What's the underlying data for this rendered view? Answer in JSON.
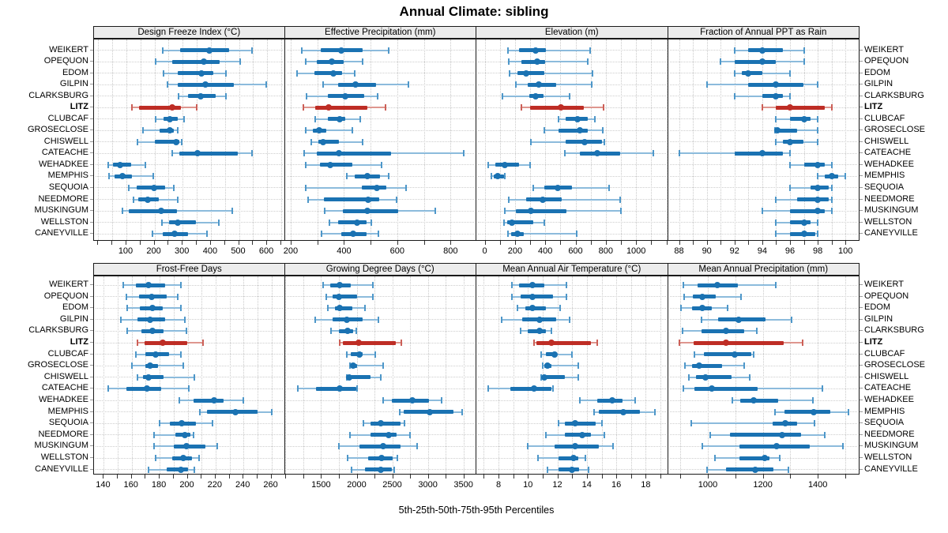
{
  "title": "Annual Climate: sibling",
  "caption": "5th-25th-50th-75th-95th Percentiles",
  "highlight_site": "LITZ",
  "colors": {
    "series": "#1A72B2",
    "series_light": "#8CBBDC",
    "series_cap": "#4E97C9",
    "highlight": "#BE2D25",
    "highlight_light": "#DE968F",
    "highlight_cap": "#CC6058",
    "strip_bg": "#ECECEC",
    "grid": "#C9C9C9"
  },
  "chart_data": {
    "type": "dotplot",
    "subtype": "percentile-interval-plot",
    "percentile_labels": [
      "5th",
      "25th",
      "50th",
      "75th",
      "95th"
    ],
    "legend_position": "none",
    "grid": true,
    "sites": [
      "WEIKERT",
      "OPEQUON",
      "EDOM",
      "GILPIN",
      "CLARKSBURG",
      "LITZ",
      "CLUBCAF",
      "GROSECLOSE",
      "CHISWELL",
      "CATEACHE",
      "WEHADKEE",
      "MEMPHIS",
      "SEQUOIA",
      "NEEDMORE",
      "MUSKINGUM",
      "WELLSTON",
      "CANEYVILLE"
    ],
    "highlight_index": 5,
    "panels": [
      {
        "title": "Design Freeze Index (°C)",
        "row": 0,
        "col": 0,
        "xlim": [
          -15,
          660
        ],
        "label_ticks": [
          100,
          200,
          300,
          400,
          500,
          600
        ],
        "minor_step": 50,
        "values": [
          [
            230,
            290,
            395,
            465,
            545
          ],
          [
            205,
            262,
            375,
            430,
            505
          ],
          [
            232,
            283,
            367,
            408,
            453
          ],
          [
            246,
            283,
            381,
            482,
            598
          ],
          [
            286,
            320,
            364,
            417,
            453
          ],
          [
            120,
            145,
            263,
            295,
            350
          ],
          [
            203,
            232,
            254,
            283,
            305
          ],
          [
            158,
            219,
            254,
            269,
            283
          ],
          [
            140,
            200,
            277,
            288,
            295
          ],
          [
            262,
            288,
            353,
            496,
            545
          ],
          [
            36,
            52,
            78,
            117,
            166
          ],
          [
            38,
            57,
            87,
            121,
            195
          ],
          [
            109,
            137,
            198,
            239,
            267
          ],
          [
            124,
            143,
            177,
            214,
            281
          ],
          [
            87,
            107,
            223,
            279,
            476
          ],
          [
            226,
            251,
            283,
            348,
            427
          ],
          [
            193,
            230,
            272,
            319,
            385
          ]
        ]
      },
      {
        "title": "Effective Precipitation (mm)",
        "row": 0,
        "col": 1,
        "xlim": [
          178,
          891
        ],
        "label_ticks": [
          200,
          400,
          600,
          800
        ],
        "minor_step": 100,
        "values": [
          [
            243,
            314,
            390,
            471,
            569
          ],
          [
            255,
            297,
            355,
            400,
            469
          ],
          [
            224,
            289,
            361,
            392,
            439
          ],
          [
            322,
            377,
            443,
            520,
            642
          ],
          [
            260,
            338,
            404,
            475,
            527
          ],
          [
            248,
            292,
            343,
            488,
            557
          ],
          [
            293,
            338,
            384,
            406,
            460
          ],
          [
            256,
            284,
            308,
            333,
            431
          ],
          [
            276,
            303,
            323,
            382,
            470
          ],
          [
            250,
            298,
            382,
            578,
            850
          ],
          [
            257,
            309,
            348,
            431,
            541
          ],
          [
            410,
            439,
            488,
            534,
            567
          ],
          [
            255,
            466,
            524,
            559,
            632
          ],
          [
            265,
            324,
            490,
            534,
            598
          ],
          [
            328,
            397,
            488,
            603,
            743
          ],
          [
            345,
            377,
            449,
            485,
            502
          ],
          [
            316,
            390,
            433,
            485,
            529
          ]
        ]
      },
      {
        "title": "Elevation (m)",
        "row": 0,
        "col": 2,
        "xlim": [
          -55,
          1200
        ],
        "label_ticks": [
          0,
          200,
          400,
          600,
          800,
          1000
        ],
        "minor_step": 100,
        "values": [
          [
            155,
            225,
            338,
            405,
            695
          ],
          [
            160,
            240,
            344,
            400,
            680
          ],
          [
            163,
            215,
            275,
            395,
            710
          ],
          [
            206,
            284,
            356,
            473,
            705
          ],
          [
            115,
            292,
            338,
            387,
            560
          ],
          [
            244,
            300,
            503,
            653,
            785
          ],
          [
            490,
            535,
            613,
            680,
            730
          ],
          [
            395,
            490,
            627,
            679,
            778
          ],
          [
            304,
            533,
            662,
            773,
            790
          ],
          [
            528,
            627,
            744,
            894,
            1115
          ],
          [
            25,
            70,
            135,
            225,
            300
          ],
          [
            45,
            60,
            85,
            125,
            135
          ],
          [
            318,
            395,
            481,
            575,
            820
          ],
          [
            160,
            275,
            383,
            507,
            895
          ],
          [
            130,
            206,
            304,
            541,
            900
          ],
          [
            125,
            146,
            180,
            318,
            395
          ],
          [
            155,
            172,
            218,
            258,
            605
          ]
        ]
      },
      {
        "title": "Fraction of Annual PPT as Rain",
        "row": 0,
        "col": 3,
        "xlim": [
          87.2,
          100.9
        ],
        "label_ticks": [
          88,
          90,
          92,
          94,
          96,
          98,
          100
        ],
        "minor_step": 1,
        "values": [
          [
            92,
            93,
            94,
            95.5,
            97
          ],
          [
            91,
            92,
            94,
            95,
            97
          ],
          [
            92,
            92.5,
            93,
            94,
            96
          ],
          [
            90,
            93,
            95,
            97,
            98
          ],
          [
            92,
            94,
            95,
            95.5,
            96
          ],
          [
            94,
            95,
            96,
            98.5,
            99
          ],
          [
            95,
            96,
            97,
            97.5,
            98
          ],
          [
            94.9,
            95,
            95.1,
            96.5,
            98
          ],
          [
            95,
            95.5,
            96,
            97,
            98
          ],
          [
            88,
            92,
            94,
            95.5,
            96
          ],
          [
            96,
            97,
            98,
            98.5,
            99
          ],
          [
            98,
            98.5,
            99,
            99.5,
            100
          ],
          [
            96,
            97.5,
            98,
            98.8,
            99
          ],
          [
            95,
            96.5,
            98,
            98.8,
            99
          ],
          [
            94,
            96,
            98,
            98.5,
            99
          ],
          [
            95,
            96,
            97,
            97.5,
            98
          ],
          [
            95,
            96,
            97,
            97.8,
            98
          ]
        ]
      },
      {
        "title": "Frost-Free Days",
        "row": 1,
        "col": 0,
        "xlim": [
          133,
          269
        ],
        "label_ticks": [
          140,
          160,
          180,
          200,
          220,
          240,
          260
        ],
        "minor_step": 10,
        "values": [
          [
            154,
            163,
            172,
            184,
            195
          ],
          [
            156,
            165,
            174,
            185,
            193
          ],
          [
            157,
            166,
            175,
            182,
            195
          ],
          [
            152,
            164,
            173,
            184,
            198
          ],
          [
            157,
            167,
            175,
            183,
            199
          ],
          [
            164,
            169,
            182,
            200,
            211
          ],
          [
            163,
            170,
            177,
            187,
            195
          ],
          [
            160,
            170,
            173,
            179,
            197
          ],
          [
            164,
            168,
            172,
            183,
            205
          ],
          [
            143,
            156,
            171,
            181,
            201
          ],
          [
            194,
            204,
            219,
            226,
            240
          ],
          [
            209,
            214,
            234,
            250,
            260
          ],
          [
            180,
            187,
            196,
            206,
            218
          ],
          [
            176,
            191,
            198,
            202,
            204
          ],
          [
            176,
            190,
            199,
            213,
            221
          ],
          [
            177,
            189,
            197,
            203,
            208
          ],
          [
            172,
            185,
            195,
            200,
            205
          ]
        ]
      },
      {
        "title": "Growing Degree Days (°C)",
        "row": 1,
        "col": 1,
        "xlim": [
          990,
          3660
        ],
        "label_ticks": [
          1500,
          2000,
          2500,
          3000,
          3500
        ],
        "minor_step": 250,
        "values": [
          [
            1530,
            1630,
            1765,
            1920,
            2225
          ],
          [
            1575,
            1665,
            1755,
            2010,
            2230
          ],
          [
            1600,
            1690,
            1765,
            1940,
            2115
          ],
          [
            1420,
            1665,
            1865,
            2085,
            2300
          ],
          [
            1640,
            1755,
            1875,
            1955,
            1995
          ],
          [
            1765,
            1800,
            2025,
            2545,
            2625
          ],
          [
            1860,
            1920,
            2040,
            2085,
            2260
          ],
          [
            1910,
            1930,
            1955,
            2010,
            2370
          ],
          [
            1860,
            1880,
            1895,
            2195,
            2335
          ],
          [
            1170,
            1425,
            1765,
            1995,
            2010
          ],
          [
            2370,
            2495,
            2780,
            3020,
            3190
          ],
          [
            2605,
            2665,
            3030,
            3365,
            3485
          ],
          [
            2095,
            2190,
            2335,
            2615,
            2670
          ],
          [
            1910,
            2190,
            2445,
            2560,
            2750
          ],
          [
            1750,
            2040,
            2370,
            2615,
            2845
          ],
          [
            1875,
            2165,
            2350,
            2505,
            2570
          ],
          [
            1930,
            2120,
            2335,
            2495,
            2530
          ]
        ]
      },
      {
        "title": "Mean Annual Air Temperature (°C)",
        "row": 1,
        "col": 2,
        "xlim": [
          6.5,
          19.4
        ],
        "label_ticks": [
          8,
          10,
          12,
          14,
          16,
          18
        ],
        "minor_step": 1,
        "values": [
          [
            8.9,
            9.4,
            10.3,
            11.1,
            12.6
          ],
          [
            8.9,
            9.5,
            10.3,
            11.7,
            12.6
          ],
          [
            9.3,
            9.8,
            10.3,
            11.2,
            12.2
          ],
          [
            8.2,
            9.6,
            10.8,
            11.9,
            12.8
          ],
          [
            9.5,
            10,
            10.8,
            11.2,
            11.6
          ],
          [
            10.4,
            10.6,
            11.6,
            14.3,
            14.7
          ],
          [
            10.9,
            11.2,
            11.8,
            12,
            13
          ],
          [
            11,
            11.1,
            11.3,
            11.6,
            13.4
          ],
          [
            10.9,
            11,
            11.1,
            12.5,
            13.4
          ],
          [
            7.3,
            8.8,
            10.4,
            11.6,
            11.7
          ],
          [
            13.5,
            14.7,
            15.7,
            16.4,
            17.3
          ],
          [
            14.5,
            14.8,
            16.5,
            17.6,
            18.6
          ],
          [
            12.1,
            12.5,
            13.2,
            14.6,
            15
          ],
          [
            11.2,
            12.5,
            13.7,
            14.3,
            15.2
          ],
          [
            10,
            11.8,
            13.2,
            14.8,
            15.8
          ],
          [
            10.7,
            12.1,
            13.1,
            13.4,
            13.9
          ],
          [
            11.3,
            12.1,
            13,
            13.5,
            14.1
          ]
        ]
      },
      {
        "title": "Mean Annual Precipitation (mm)",
        "row": 1,
        "col": 3,
        "xlim": [
          855,
          1546
        ],
        "label_ticks": [
          1000,
          1200,
          1400
        ],
        "minor_step": 100,
        "values": [
          [
            910,
            962,
            1033,
            1110,
            1248
          ],
          [
            914,
            945,
            981,
            1029,
            1122
          ],
          [
            903,
            943,
            981,
            1014,
            1071
          ],
          [
            976,
            1038,
            1112,
            1210,
            1305
          ],
          [
            907,
            976,
            1065,
            1133,
            1179
          ],
          [
            897,
            948,
            1067,
            1276,
            1345
          ],
          [
            950,
            986,
            1097,
            1157,
            1167
          ],
          [
            916,
            943,
            967,
            1052,
            1133
          ],
          [
            931,
            957,
            992,
            1086,
            1152
          ],
          [
            912,
            950,
            1014,
            1181,
            1417
          ],
          [
            1088,
            1119,
            1167,
            1257,
            1381
          ],
          [
            1243,
            1278,
            1386,
            1446,
            1510
          ],
          [
            941,
            1236,
            1281,
            1324,
            1389
          ],
          [
            1008,
            1081,
            1271,
            1338,
            1424
          ],
          [
            979,
            1114,
            1250,
            1371,
            1490
          ],
          [
            1027,
            1114,
            1208,
            1224,
            1262
          ],
          [
            998,
            1067,
            1173,
            1238,
            1293
          ]
        ]
      }
    ]
  }
}
